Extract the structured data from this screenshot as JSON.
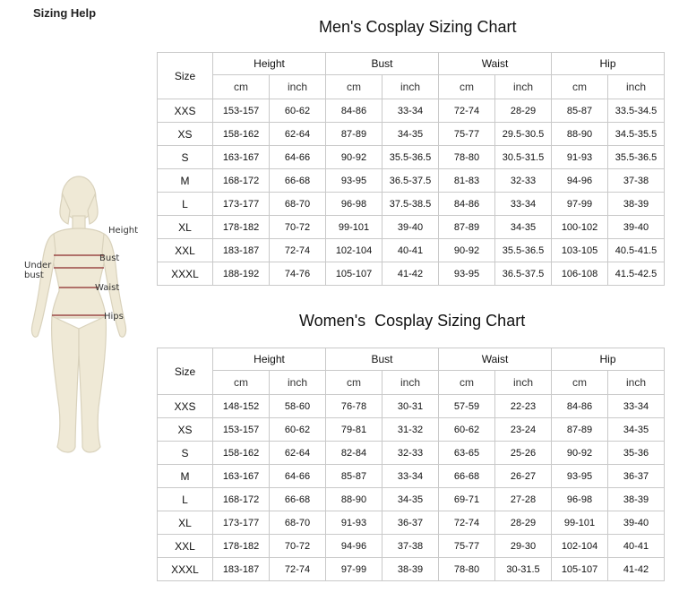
{
  "page_heading": "Sizing Help",
  "figure": {
    "labels": {
      "height": "Height",
      "bust": "Bust",
      "under_bust": "Under\nbust",
      "waist": "Waist",
      "hips": "Hips"
    },
    "colors": {
      "body_fill": "#efe9d6",
      "body_stroke": "#d9d2bc",
      "measure_line": "#8a2a2a"
    }
  },
  "men": {
    "title": "Men's Cosplay Sizing Chart",
    "size_header": "Size",
    "groups": [
      "Height",
      "Bust",
      "Waist",
      "Hip"
    ],
    "units": [
      "cm",
      "inch",
      "cm",
      "inch",
      "cm",
      "inch",
      "cm",
      "inch"
    ],
    "rows": [
      [
        "XXS",
        "153-157",
        "60-62",
        "84-86",
        "33-34",
        "72-74",
        "28-29",
        "85-87",
        "33.5-34.5"
      ],
      [
        "XS",
        "158-162",
        "62-64",
        "87-89",
        "34-35",
        "75-77",
        "29.5-30.5",
        "88-90",
        "34.5-35.5"
      ],
      [
        "S",
        "163-167",
        "64-66",
        "90-92",
        "35.5-36.5",
        "78-80",
        "30.5-31.5",
        "91-93",
        "35.5-36.5"
      ],
      [
        "M",
        "168-172",
        "66-68",
        "93-95",
        "36.5-37.5",
        "81-83",
        "32-33",
        "94-96",
        "37-38"
      ],
      [
        "L",
        "173-177",
        "68-70",
        "96-98",
        "37.5-38.5",
        "84-86",
        "33-34",
        "97-99",
        "38-39"
      ],
      [
        "XL",
        "178-182",
        "70-72",
        "99-101",
        "39-40",
        "87-89",
        "34-35",
        "100-102",
        "39-40"
      ],
      [
        "XXL",
        "183-187",
        "72-74",
        "102-104",
        "40-41",
        "90-92",
        "35.5-36.5",
        "103-105",
        "40.5-41.5"
      ],
      [
        "XXXL",
        "188-192",
        "74-76",
        "105-107",
        "41-42",
        "93-95",
        "36.5-37.5",
        "106-108",
        "41.5-42.5"
      ]
    ]
  },
  "women": {
    "title": "Women's  Cosplay Sizing Chart",
    "size_header": "Size",
    "groups": [
      "Height",
      "Bust",
      "Waist",
      "Hip"
    ],
    "units": [
      "cm",
      "inch",
      "cm",
      "inch",
      "cm",
      "inch",
      "cm",
      "inch"
    ],
    "rows": [
      [
        "XXS",
        "148-152",
        "58-60",
        "76-78",
        "30-31",
        "57-59",
        "22-23",
        "84-86",
        "33-34"
      ],
      [
        "XS",
        "153-157",
        "60-62",
        "79-81",
        "31-32",
        "60-62",
        "23-24",
        "87-89",
        "34-35"
      ],
      [
        "S",
        "158-162",
        "62-64",
        "82-84",
        "32-33",
        "63-65",
        "25-26",
        "90-92",
        "35-36"
      ],
      [
        "M",
        "163-167",
        "64-66",
        "85-87",
        "33-34",
        "66-68",
        "26-27",
        "93-95",
        "36-37"
      ],
      [
        "L",
        "168-172",
        "66-68",
        "88-90",
        "34-35",
        "69-71",
        "27-28",
        "96-98",
        "38-39"
      ],
      [
        "XL",
        "173-177",
        "68-70",
        "91-93",
        "36-37",
        "72-74",
        "28-29",
        "99-101",
        "39-40"
      ],
      [
        "XXL",
        "178-182",
        "70-72",
        "94-96",
        "37-38",
        "75-77",
        "29-30",
        "102-104",
        "40-41"
      ],
      [
        "XXXL",
        "183-187",
        "72-74",
        "97-99",
        "38-39",
        "78-80",
        "30-31.5",
        "105-107",
        "41-42"
      ]
    ]
  }
}
